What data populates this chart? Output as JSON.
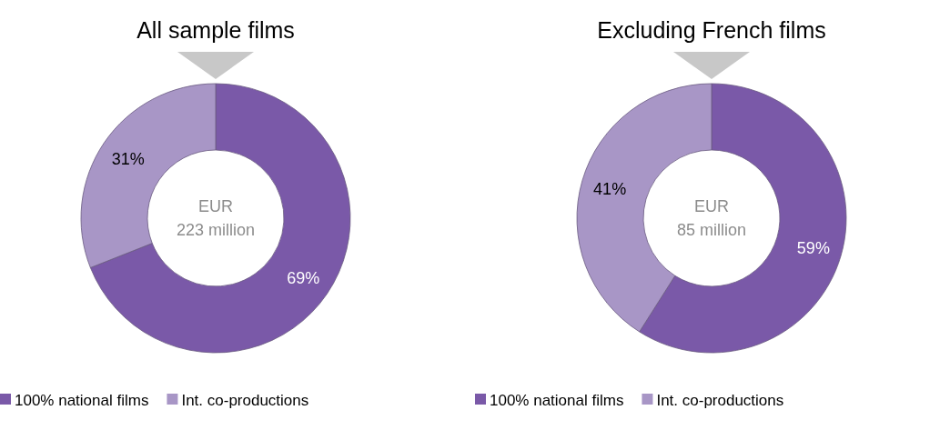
{
  "chart_data": [
    {
      "type": "donut",
      "title": "All sample films",
      "categories": [
        "100% national films",
        "Int. co-productions"
      ],
      "values": [
        69,
        31
      ],
      "colors": [
        "#7a59a8",
        "#a896c6"
      ],
      "value_labels": [
        "69%",
        "31%"
      ],
      "annotations": [
        "EUR",
        "223 million"
      ],
      "legend": "bottom left"
    },
    {
      "type": "donut",
      "title": "Excluding French films",
      "categories": [
        "100% national films",
        "Int. co-productions"
      ],
      "values": [
        59,
        41
      ],
      "colors": [
        "#7a59a8",
        "#a896c6"
      ],
      "value_labels": [
        "59%",
        "41%"
      ],
      "annotations": [
        "EUR",
        "85 million"
      ],
      "legend": "bottom left"
    }
  ]
}
